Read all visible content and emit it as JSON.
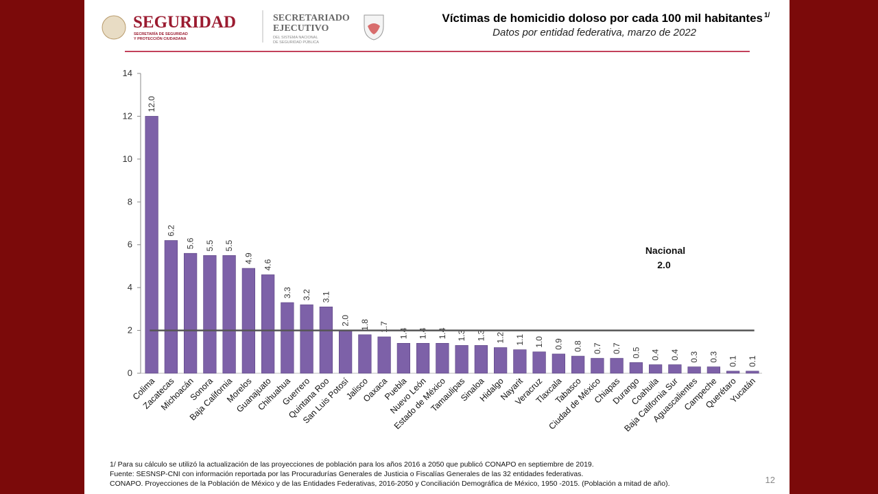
{
  "header": {
    "logo1": {
      "name": "SEGURIDAD",
      "line1": "SECRETARÍA DE SEGURIDAD",
      "line2": "Y PROTECCIÓN CIUDADANA"
    },
    "logo2": {
      "name1": "SECRETARIADO",
      "name2": "EJECUTIVO",
      "line1": "DEL SISTEMA NACIONAL",
      "line2": "DE SEGURIDAD PÚBLICA"
    }
  },
  "chart_data": {
    "type": "bar",
    "title": "Víctimas de homicidio doloso por cada 100 mil habitantes",
    "title_note": "1/",
    "subtitle": "Datos por entidad federativa, marzo de 2022",
    "categories": [
      "Colima",
      "Zacatecas",
      "Michoacán",
      "Sonora",
      "Baja California",
      "Morelos",
      "Guanajuato",
      "Chihuahua",
      "Guerrero",
      "Quintana Roo",
      "San Luis Potosí",
      "Jalisco",
      "Oaxaca",
      "Puebla",
      "Nuevo León",
      "Estado de México",
      "Tamaulipas",
      "Sinaloa",
      "Hidalgo",
      "Nayarit",
      "Veracruz",
      "Tlaxcala",
      "Tabasco",
      "Ciudad de México",
      "Chiapas",
      "Durango",
      "Coahuila",
      "Baja California Sur",
      "Aguascalientes",
      "Campeche",
      "Querétaro",
      "Yucatán"
    ],
    "values": [
      12.0,
      6.2,
      5.6,
      5.5,
      5.5,
      4.9,
      4.6,
      3.3,
      3.2,
      3.1,
      2.0,
      1.8,
      1.7,
      1.4,
      1.4,
      1.4,
      1.3,
      1.3,
      1.2,
      1.1,
      1.0,
      0.9,
      0.8,
      0.7,
      0.7,
      0.5,
      0.4,
      0.4,
      0.3,
      0.3,
      0.1,
      0.1
    ],
    "value_labels": [
      "12.0",
      "6.2",
      "5.6",
      "5.5",
      "5.5",
      "4.9",
      "4.6",
      "3.3",
      "3.2",
      "3.1",
      "2.0",
      "1.8",
      "1.7",
      "1.4",
      "1.4",
      "1.4",
      "1.3",
      "1.3",
      "1.2",
      "1.1",
      "1.0",
      "0.9",
      "0.8",
      "0.7",
      "0.7",
      "0.5",
      "0.4",
      "0.4",
      "0.3",
      "0.3",
      "0.1",
      "0.1"
    ],
    "color": "#7d61a8",
    "ylim": [
      0,
      14
    ],
    "yticks": [
      0,
      2,
      4,
      6,
      8,
      10,
      12,
      14
    ],
    "national": {
      "label": "Nacional",
      "value": 2.0,
      "value_label": "2.0",
      "color": "#555555"
    }
  },
  "footnotes": [
    "1/ Para su cálculo se utilizó la actualización de las proyecciones de población para los años 2016 a 2050 que publicó CONAPO en septiembre de 2019.",
    "Fuente: SESNSP-CNI con información reportada por las Procuradurías Generales de Justicia o Fiscalías Generales de las 32 entidades federativas.",
    "CONAPO. Proyecciones de la Población de México y de las Entidades Federativas, 2016-2050 y Conciliación Demográfica de México, 1950 -2015. (Población a mitad de año)."
  ],
  "page_number": "12"
}
